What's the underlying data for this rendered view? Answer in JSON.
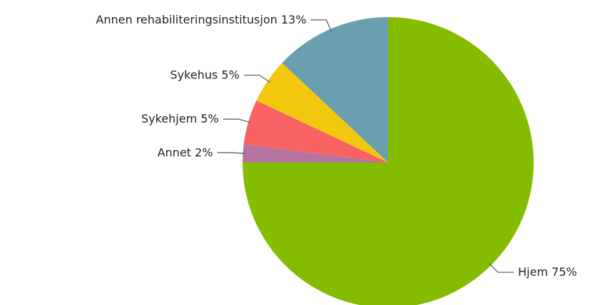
{
  "chart_data": {
    "type": "pie",
    "categories": [
      "Hjem",
      "Annet",
      "Sykehjem",
      "Sykehus",
      "Annen rehabiliteringsinstitusjon"
    ],
    "values": [
      75,
      2,
      5,
      5,
      13
    ],
    "value_labels": [
      "75%",
      "2%",
      "5%",
      "5%",
      "13%"
    ],
    "colors": [
      "#84bd00",
      "#b5739d",
      "#f96262",
      "#f2c80f",
      "#6a9fb0"
    ]
  }
}
